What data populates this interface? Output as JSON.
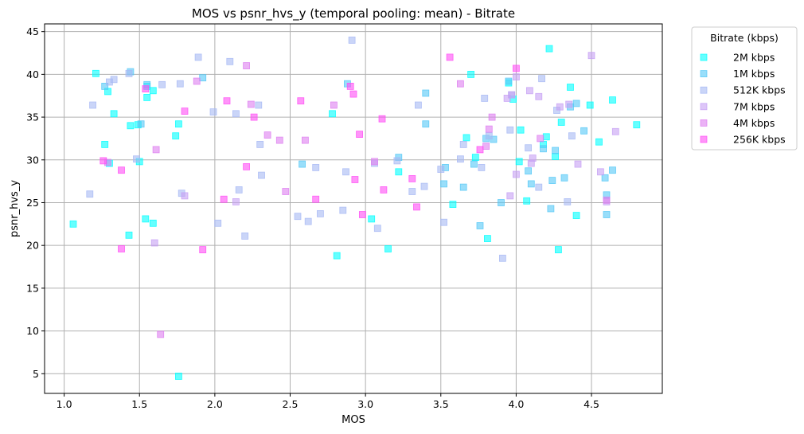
{
  "chart_data": {
    "type": "scatter",
    "title": "MOS vs psnr_hvs_y (temporal pooling: mean) - Bitrate",
    "xlabel": "MOS",
    "ylabel": "psnr_hvs_y",
    "xlim": [
      0.87,
      4.97
    ],
    "ylim": [
      2.7,
      45.9
    ],
    "xticks": [
      1.0,
      1.5,
      2.0,
      2.5,
      3.0,
      3.5,
      4.0,
      4.5
    ],
    "yticks": [
      5,
      10,
      15,
      20,
      25,
      30,
      35,
      40,
      45
    ],
    "grid": true,
    "marker": "square",
    "legend": {
      "title": "Bitrate (kbps)",
      "placement": "outside-top-right"
    },
    "series": [
      {
        "name": "2M kbps",
        "color": "#00ffff",
        "points": [
          [
            1.06,
            22.5
          ],
          [
            1.21,
            40.1
          ],
          [
            1.27,
            31.8
          ],
          [
            1.29,
            38.0
          ],
          [
            1.3,
            29.6
          ],
          [
            1.33,
            35.4
          ],
          [
            1.43,
            21.2
          ],
          [
            1.44,
            34.0
          ],
          [
            1.49,
            34.1
          ],
          [
            1.5,
            29.8
          ],
          [
            1.54,
            23.1
          ],
          [
            1.55,
            37.3
          ],
          [
            1.55,
            38.6
          ],
          [
            1.59,
            22.6
          ],
          [
            1.59,
            38.1
          ],
          [
            1.74,
            32.8
          ],
          [
            1.76,
            34.2
          ],
          [
            1.76,
            4.7
          ],
          [
            2.78,
            35.4
          ],
          [
            2.81,
            18.8
          ],
          [
            3.04,
            23.1
          ],
          [
            3.15,
            19.6
          ],
          [
            3.22,
            28.6
          ],
          [
            3.58,
            24.8
          ],
          [
            3.67,
            32.6
          ],
          [
            3.7,
            40.0
          ],
          [
            3.73,
            30.3
          ],
          [
            3.81,
            20.8
          ],
          [
            3.95,
            39.0
          ],
          [
            3.98,
            37.1
          ],
          [
            4.02,
            29.8
          ],
          [
            4.03,
            33.5
          ],
          [
            4.07,
            25.2
          ],
          [
            4.18,
            31.8
          ],
          [
            4.2,
            32.7
          ],
          [
            4.22,
            43.0
          ],
          [
            4.26,
            30.4
          ],
          [
            4.28,
            19.5
          ],
          [
            4.3,
            34.4
          ],
          [
            4.36,
            38.5
          ],
          [
            4.4,
            23.5
          ],
          [
            4.49,
            36.4
          ],
          [
            4.55,
            32.1
          ],
          [
            4.64,
            37.0
          ],
          [
            4.8,
            34.1
          ]
        ]
      },
      {
        "name": "1M kbps",
        "color": "#55c8f6",
        "points": [
          [
            1.27,
            38.6
          ],
          [
            1.44,
            40.3
          ],
          [
            1.51,
            34.2
          ],
          [
            1.55,
            38.8
          ],
          [
            1.92,
            39.6
          ],
          [
            2.58,
            29.5
          ],
          [
            2.88,
            38.9
          ],
          [
            3.22,
            30.3
          ],
          [
            3.4,
            34.2
          ],
          [
            3.4,
            37.8
          ],
          [
            3.52,
            27.2
          ],
          [
            3.53,
            29.1
          ],
          [
            3.65,
            26.8
          ],
          [
            3.72,
            29.5
          ],
          [
            3.76,
            22.3
          ],
          [
            3.8,
            32.5
          ],
          [
            3.85,
            32.4
          ],
          [
            3.9,
            25.0
          ],
          [
            3.95,
            39.2
          ],
          [
            4.08,
            28.7
          ],
          [
            4.1,
            27.2
          ],
          [
            4.18,
            31.3
          ],
          [
            4.23,
            24.3
          ],
          [
            4.24,
            27.6
          ],
          [
            4.26,
            31.1
          ],
          [
            4.32,
            27.9
          ],
          [
            4.36,
            36.2
          ],
          [
            4.4,
            36.6
          ],
          [
            4.45,
            33.4
          ],
          [
            4.59,
            27.9
          ],
          [
            4.6,
            23.6
          ],
          [
            4.6,
            25.9
          ],
          [
            4.64,
            28.8
          ]
        ]
      },
      {
        "name": "512K kbps",
        "color": "#a7b9f4",
        "points": [
          [
            1.17,
            26.0
          ],
          [
            1.19,
            36.4
          ],
          [
            1.3,
            39.1
          ],
          [
            1.33,
            39.4
          ],
          [
            1.43,
            40.1
          ],
          [
            1.48,
            30.1
          ],
          [
            1.65,
            38.8
          ],
          [
            1.77,
            38.9
          ],
          [
            1.78,
            26.1
          ],
          [
            1.89,
            42.0
          ],
          [
            1.99,
            35.6
          ],
          [
            2.02,
            22.6
          ],
          [
            2.1,
            41.5
          ],
          [
            2.14,
            35.4
          ],
          [
            2.16,
            26.5
          ],
          [
            2.2,
            21.1
          ],
          [
            2.29,
            36.4
          ],
          [
            2.3,
            31.8
          ],
          [
            2.31,
            28.2
          ],
          [
            2.55,
            23.4
          ],
          [
            2.62,
            22.8
          ],
          [
            2.67,
            29.1
          ],
          [
            2.7,
            23.7
          ],
          [
            2.85,
            24.1
          ],
          [
            2.87,
            28.6
          ],
          [
            2.91,
            44.0
          ],
          [
            3.06,
            29.6
          ],
          [
            3.08,
            22.0
          ],
          [
            3.21,
            29.9
          ],
          [
            3.31,
            26.3
          ],
          [
            3.35,
            36.4
          ],
          [
            3.39,
            26.9
          ],
          [
            3.5,
            28.9
          ],
          [
            3.52,
            22.7
          ],
          [
            3.63,
            30.1
          ],
          [
            3.65,
            31.8
          ],
          [
            3.77,
            29.1
          ],
          [
            3.79,
            37.2
          ],
          [
            3.82,
            32.8
          ],
          [
            3.91,
            18.5
          ],
          [
            3.96,
            33.5
          ],
          [
            3.97,
            37.6
          ],
          [
            4.08,
            31.4
          ],
          [
            4.15,
            26.8
          ],
          [
            4.17,
            39.5
          ],
          [
            4.27,
            35.8
          ],
          [
            4.34,
            25.1
          ],
          [
            4.37,
            32.8
          ]
        ]
      },
      {
        "name": "7M kbps",
        "color": "#c6a0f4",
        "points": [
          [
            1.6,
            20.3
          ],
          [
            1.8,
            25.8
          ],
          [
            2.14,
            25.1
          ],
          [
            3.94,
            37.2
          ],
          [
            3.96,
            25.8
          ],
          [
            3.97,
            37.6
          ],
          [
            4.0,
            39.7
          ],
          [
            4.0,
            28.3
          ],
          [
            4.09,
            38.1
          ],
          [
            4.1,
            29.6
          ],
          [
            4.11,
            30.2
          ],
          [
            4.15,
            37.4
          ],
          [
            4.29,
            36.2
          ],
          [
            4.35,
            36.5
          ],
          [
            4.41,
            29.5
          ],
          [
            4.5,
            42.2
          ],
          [
            4.56,
            28.6
          ],
          [
            4.6,
            25.1
          ],
          [
            4.66,
            33.3
          ]
        ]
      },
      {
        "name": "4M kbps",
        "color": "#dd7ef0",
        "points": [
          [
            1.29,
            29.7
          ],
          [
            1.61,
            31.2
          ],
          [
            1.64,
            9.6
          ],
          [
            1.88,
            39.2
          ],
          [
            2.21,
            41.0
          ],
          [
            2.24,
            36.5
          ],
          [
            2.35,
            32.9
          ],
          [
            2.43,
            32.3
          ],
          [
            2.47,
            26.3
          ],
          [
            2.6,
            32.3
          ],
          [
            2.79,
            36.4
          ],
          [
            3.06,
            29.8
          ],
          [
            3.63,
            38.9
          ],
          [
            3.8,
            31.6
          ],
          [
            3.82,
            33.6
          ],
          [
            3.84,
            35.0
          ],
          [
            4.16,
            32.5
          ],
          [
            4.6,
            25.3
          ]
        ]
      },
      {
        "name": "256K kbps",
        "color": "#ff4df5",
        "points": [
          [
            1.26,
            29.9
          ],
          [
            1.38,
            28.8
          ],
          [
            1.38,
            19.6
          ],
          [
            1.54,
            38.3
          ],
          [
            1.8,
            35.7
          ],
          [
            1.92,
            19.5
          ],
          [
            2.06,
            25.4
          ],
          [
            2.08,
            36.9
          ],
          [
            2.21,
            29.2
          ],
          [
            2.26,
            35.0
          ],
          [
            2.57,
            36.9
          ],
          [
            2.67,
            25.4
          ],
          [
            2.9,
            38.6
          ],
          [
            2.92,
            37.7
          ],
          [
            2.93,
            27.7
          ],
          [
            2.96,
            33.0
          ],
          [
            2.98,
            23.6
          ],
          [
            3.11,
            34.8
          ],
          [
            3.12,
            26.5
          ],
          [
            3.31,
            27.8
          ],
          [
            3.34,
            24.5
          ],
          [
            3.56,
            42.0
          ],
          [
            3.76,
            31.2
          ],
          [
            4.0,
            40.7
          ]
        ]
      }
    ]
  }
}
